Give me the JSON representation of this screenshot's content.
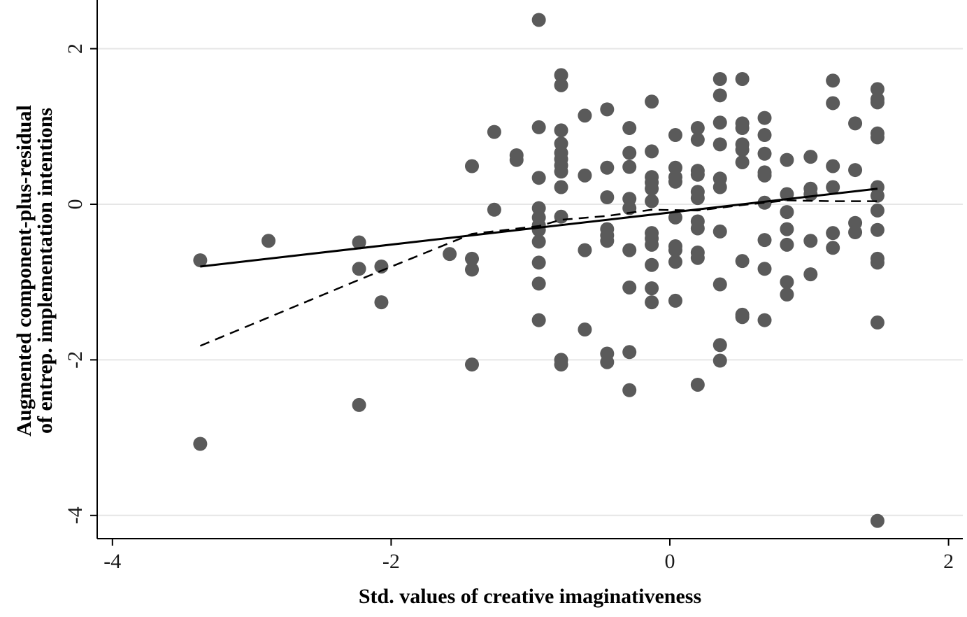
{
  "chart_data": {
    "type": "scatter",
    "xlabel": "Std. values of creative imaginativeness",
    "ylabel_lines": [
      "Augmented component-plus-residual",
      "of entrep. implementation intentions"
    ],
    "xlim": [
      -4.1,
      2.1
    ],
    "ylim": [
      -4.3,
      2.5
    ],
    "xticks": [
      -4,
      -2,
      0,
      2
    ],
    "yticks": [
      -4,
      -2,
      0,
      2
    ],
    "grid": "horizontal",
    "point_color": "#5a5a5a",
    "points": [
      [
        -3.37,
        -0.72
      ],
      [
        -3.37,
        -3.08
      ],
      [
        -2.88,
        -0.47
      ],
      [
        -2.23,
        -0.49
      ],
      [
        -2.23,
        -0.83
      ],
      [
        -2.23,
        -2.58
      ],
      [
        -2.07,
        -0.8
      ],
      [
        -2.07,
        -1.26
      ],
      [
        -1.58,
        -0.64
      ],
      [
        -1.42,
        0.49
      ],
      [
        -1.42,
        -0.7
      ],
      [
        -1.42,
        -0.84
      ],
      [
        -1.42,
        -2.06
      ],
      [
        -1.26,
        0.93
      ],
      [
        -1.26,
        -0.07
      ],
      [
        -1.1,
        0.63
      ],
      [
        -1.1,
        0.57
      ],
      [
        -0.94,
        2.37
      ],
      [
        -0.94,
        0.99
      ],
      [
        -0.94,
        0.34
      ],
      [
        -0.94,
        -0.05
      ],
      [
        -0.94,
        -0.17
      ],
      [
        -0.94,
        -0.27
      ],
      [
        -0.94,
        -0.33
      ],
      [
        -0.94,
        -0.48
      ],
      [
        -0.94,
        -0.75
      ],
      [
        -0.94,
        -1.02
      ],
      [
        -0.94,
        -1.49
      ],
      [
        -0.78,
        1.66
      ],
      [
        -0.78,
        1.53
      ],
      [
        -0.78,
        0.95
      ],
      [
        -0.78,
        0.78
      ],
      [
        -0.78,
        0.66
      ],
      [
        -0.78,
        0.58
      ],
      [
        -0.78,
        0.5
      ],
      [
        -0.78,
        0.42
      ],
      [
        -0.78,
        0.22
      ],
      [
        -0.78,
        -0.16
      ],
      [
        -0.78,
        -2.0
      ],
      [
        -0.78,
        -2.06
      ],
      [
        -0.61,
        1.14
      ],
      [
        -0.61,
        0.37
      ],
      [
        -0.61,
        -0.59
      ],
      [
        -0.61,
        -1.61
      ],
      [
        -0.45,
        1.22
      ],
      [
        -0.45,
        0.47
      ],
      [
        -0.45,
        0.09
      ],
      [
        -0.45,
        -0.32
      ],
      [
        -0.45,
        -0.4
      ],
      [
        -0.45,
        -0.47
      ],
      [
        -0.45,
        -1.92
      ],
      [
        -0.45,
        -2.03
      ],
      [
        -0.29,
        0.98
      ],
      [
        -0.29,
        0.66
      ],
      [
        -0.29,
        0.48
      ],
      [
        -0.29,
        0.07
      ],
      [
        -0.29,
        -0.05
      ],
      [
        -0.29,
        -0.59
      ],
      [
        -0.29,
        -1.07
      ],
      [
        -0.29,
        -1.9
      ],
      [
        -0.29,
        -2.39
      ],
      [
        -0.13,
        1.32
      ],
      [
        -0.13,
        0.68
      ],
      [
        -0.13,
        0.35
      ],
      [
        -0.13,
        0.28
      ],
      [
        -0.13,
        0.2
      ],
      [
        -0.13,
        0.04
      ],
      [
        -0.13,
        -0.37
      ],
      [
        -0.13,
        -0.44
      ],
      [
        -0.13,
        -0.52
      ],
      [
        -0.13,
        -0.78
      ],
      [
        -0.13,
        -1.08
      ],
      [
        -0.13,
        -1.26
      ],
      [
        0.04,
        0.89
      ],
      [
        0.04,
        0.47
      ],
      [
        0.04,
        0.35
      ],
      [
        0.04,
        0.29
      ],
      [
        0.04,
        -0.17
      ],
      [
        0.04,
        -0.54
      ],
      [
        0.04,
        -0.59
      ],
      [
        0.04,
        -0.74
      ],
      [
        0.04,
        -1.24
      ],
      [
        0.2,
        0.98
      ],
      [
        0.2,
        0.83
      ],
      [
        0.2,
        0.43
      ],
      [
        0.2,
        0.38
      ],
      [
        0.2,
        0.16
      ],
      [
        0.2,
        0.08
      ],
      [
        0.2,
        -0.22
      ],
      [
        0.2,
        -0.31
      ],
      [
        0.2,
        -0.62
      ],
      [
        0.2,
        -0.69
      ],
      [
        0.2,
        -2.32
      ],
      [
        0.36,
        1.61
      ],
      [
        0.36,
        1.4
      ],
      [
        0.36,
        1.05
      ],
      [
        0.36,
        0.77
      ],
      [
        0.36,
        0.33
      ],
      [
        0.36,
        0.22
      ],
      [
        0.36,
        -0.35
      ],
      [
        0.36,
        -1.03
      ],
      [
        0.36,
        -1.81
      ],
      [
        0.36,
        -2.01
      ],
      [
        0.52,
        1.61
      ],
      [
        0.52,
        1.04
      ],
      [
        0.52,
        0.98
      ],
      [
        0.52,
        0.77
      ],
      [
        0.52,
        0.7
      ],
      [
        0.52,
        0.54
      ],
      [
        0.52,
        -0.73
      ],
      [
        0.52,
        -1.42
      ],
      [
        0.52,
        -1.45
      ],
      [
        0.68,
        1.11
      ],
      [
        0.68,
        0.89
      ],
      [
        0.68,
        0.65
      ],
      [
        0.68,
        0.41
      ],
      [
        0.68,
        0.37
      ],
      [
        0.68,
        0.02
      ],
      [
        0.68,
        -0.46
      ],
      [
        0.68,
        -0.83
      ],
      [
        0.68,
        -1.49
      ],
      [
        0.84,
        0.57
      ],
      [
        0.84,
        0.13
      ],
      [
        0.84,
        -0.1
      ],
      [
        0.84,
        -0.32
      ],
      [
        0.84,
        -0.52
      ],
      [
        0.84,
        -1.0
      ],
      [
        0.84,
        -1.16
      ],
      [
        1.01,
        0.61
      ],
      [
        1.01,
        0.2
      ],
      [
        1.01,
        0.13
      ],
      [
        1.01,
        -0.47
      ],
      [
        1.01,
        -0.9
      ],
      [
        1.17,
        1.59
      ],
      [
        1.17,
        1.3
      ],
      [
        1.17,
        0.49
      ],
      [
        1.17,
        0.22
      ],
      [
        1.17,
        -0.37
      ],
      [
        1.17,
        -0.56
      ],
      [
        1.33,
        1.04
      ],
      [
        1.33,
        0.44
      ],
      [
        1.33,
        -0.24
      ],
      [
        1.33,
        -0.36
      ],
      [
        1.49,
        1.48
      ],
      [
        1.49,
        1.35
      ],
      [
        1.49,
        1.31
      ],
      [
        1.49,
        0.91
      ],
      [
        1.49,
        0.86
      ],
      [
        1.49,
        0.22
      ],
      [
        1.49,
        0.11
      ],
      [
        1.49,
        -0.08
      ],
      [
        1.49,
        -0.33
      ],
      [
        1.49,
        -0.7
      ],
      [
        1.49,
        -0.75
      ],
      [
        1.49,
        -1.52
      ],
      [
        1.49,
        -4.07
      ]
    ],
    "lines": [
      {
        "style": "solid",
        "points": [
          [
            -3.37,
            -0.8
          ],
          [
            1.49,
            0.2
          ]
        ]
      },
      {
        "style": "dashed",
        "points": [
          [
            -3.37,
            -1.82
          ],
          [
            -2.23,
            -0.97
          ],
          [
            -1.42,
            -0.38
          ],
          [
            -0.94,
            -0.28
          ],
          [
            -0.78,
            -0.2
          ],
          [
            -0.45,
            -0.15
          ],
          [
            -0.13,
            -0.07
          ],
          [
            0.2,
            -0.08
          ],
          [
            0.52,
            -0.01
          ],
          [
            0.84,
            0.05
          ],
          [
            1.17,
            0.04
          ],
          [
            1.49,
            0.04
          ]
        ]
      }
    ]
  }
}
